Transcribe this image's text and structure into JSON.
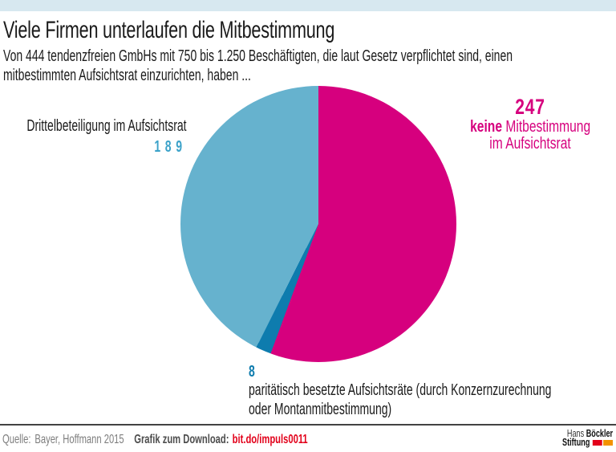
{
  "header": {
    "title": "Viele Firmen unterlaufen die Mitbestimmung",
    "subtitle_lines": [
      "Von 444 tendenzfreien GmbHs mit 750 bis 1.250 Beschäftigten, die laut Gesetz verpflichtet sind, einen",
      "mitbestimmten Aufsichtsrat einzurichten, haben ..."
    ]
  },
  "chart_data": {
    "type": "pie",
    "title": "Viele Firmen unterlaufen die Mitbestimmung",
    "total": 444,
    "start_angle_deg": 0,
    "direction": "clockwise",
    "slices": [
      {
        "label": "keine Mitbestimmung im Aufsichtsrat",
        "value": 247,
        "color": "#d6007e"
      },
      {
        "label": "paritätisch besetzte Aufsichtsräte (durch Konzernzurechnung oder Montanmitbestimmung)",
        "value": 8,
        "color": "#0e7cae"
      },
      {
        "label": "Drittelbeteiligung im Aufsichtsrat",
        "value": 189,
        "color": "#66b2ce"
      }
    ]
  },
  "labels": {
    "left": {
      "text": "Drittelbeteiligung im Aufsichtsrat",
      "value": "189"
    },
    "right": {
      "value": "247",
      "line2_bold": "keine",
      "line2_rest": " Mitbestimmung",
      "line3": "im Aufsichtsrat"
    },
    "bottom": {
      "value": "8",
      "lines": [
        "paritätisch besetzte Aufsichtsräte (durch Konzernzurechnung",
        "oder Montanmitbestimmung)"
      ]
    }
  },
  "footer": {
    "source_label": "Quelle:",
    "source": "Bayer, Hoffmann 2015",
    "download_label": "Grafik zum Download:",
    "download_link": "bit.do/impuls0011"
  },
  "logo": {
    "line1_normal": "Hans ",
    "line1_bold": "Böckler",
    "line2_bold": "Stiftung"
  },
  "colors": {
    "magenta": "#d6007e",
    "light_blue": "#66b2ce",
    "dark_blue": "#0e7cae",
    "number_blue": "#3ba2c9",
    "top_bar": "#d7e8f0",
    "logo_red": "#e2001a",
    "logo_orange": "#f39200"
  }
}
